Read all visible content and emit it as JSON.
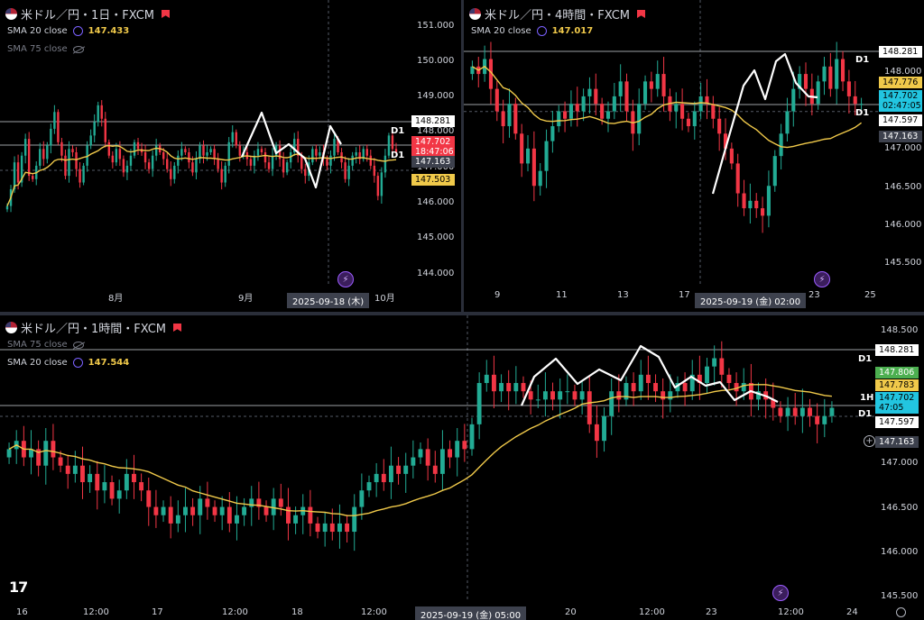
{
  "colors": {
    "up": "#22ab94",
    "down": "#f23645",
    "sma": "#f0c94a",
    "line": "#ffffff",
    "bg": "#000000",
    "crosshair": "#555a66"
  },
  "panes": [
    {
      "id": "p1",
      "title": "米ドル／円・1日・FXCM",
      "indicators": [
        {
          "name": "SMA 20 close",
          "value": "147.433",
          "icon": "settings-icon",
          "dim": false
        },
        {
          "name": "SMA 75 close",
          "value": "",
          "icon": "eye-off-icon",
          "dim": true
        }
      ],
      "yticks": [
        "151.000",
        "150.000",
        "149.000",
        "148.000",
        "147.000",
        "146.000",
        "145.000",
        "144.000"
      ],
      "price_labels": [
        {
          "text": "148.281",
          "bg": "#ffffff",
          "fg": "#000000"
        },
        {
          "text": "147.702",
          "bg": "#f23645",
          "fg": "#ffffff"
        },
        {
          "text": "18:47:06",
          "bg": "#f23645",
          "fg": "#ffffff"
        },
        {
          "text": "147.163",
          "bg": "#3d414d",
          "fg": "#ffffff"
        },
        {
          "text": "147.503",
          "bg": "#f0c94a",
          "fg": "#000000"
        }
      ],
      "d1_labels": [
        "D1",
        "D1"
      ],
      "xlabels": [
        "8月",
        "9月",
        "10月"
      ],
      "crosshair_label": "2025-09-18 (木)"
    },
    {
      "id": "p2",
      "title": "米ドル／円・4時間・FXCM",
      "indicators": [
        {
          "name": "SMA 20 close",
          "value": "147.017",
          "icon": "settings-icon",
          "dim": false
        }
      ],
      "yticks": [
        "148.500",
        "148.000",
        "147.000",
        "146.500",
        "146.000",
        "145.500"
      ],
      "price_labels": [
        {
          "text": "148.281",
          "bg": "#ffffff",
          "fg": "#000000"
        },
        {
          "text": "147.776",
          "bg": "#f0c94a",
          "fg": "#000000"
        },
        {
          "text": "147.702",
          "bg": "#22c5e0",
          "fg": "#000000"
        },
        {
          "text": "02:47:05",
          "bg": "#22c5e0",
          "fg": "#000000"
        },
        {
          "text": "147.597",
          "bg": "#ffffff",
          "fg": "#000000"
        },
        {
          "text": "147.163",
          "bg": "#3d414d",
          "fg": "#ffffff"
        }
      ],
      "d1_labels": [
        "D1",
        "D1"
      ],
      "xlabels": [
        "9",
        "11",
        "13",
        "17",
        "23",
        "25"
      ],
      "crosshair_label": "2025-09-19 (金)  02:00"
    },
    {
      "id": "p3",
      "title": "米ドル／円・1時間・FXCM",
      "indicators": [
        {
          "name": "SMA 75 close",
          "value": "",
          "icon": "eye-off-icon",
          "dim": true
        },
        {
          "name": "SMA 20 close",
          "value": "147.544",
          "icon": "settings-icon",
          "dim": false
        }
      ],
      "yticks": [
        "148.500",
        "148.000",
        "147.000",
        "146.500",
        "146.000",
        "145.500"
      ],
      "price_labels": [
        {
          "text": "148.281",
          "bg": "#ffffff",
          "fg": "#000000"
        },
        {
          "text": "147.806",
          "bg": "#4caf50",
          "fg": "#ffffff"
        },
        {
          "text": "147.783",
          "bg": "#f0c94a",
          "fg": "#000000"
        },
        {
          "text": "147.702",
          "bg": "#22c5e0",
          "fg": "#000000"
        },
        {
          "text": "47:05",
          "bg": "#22c5e0",
          "fg": "#000000"
        },
        {
          "text": "147.597",
          "bg": "#ffffff",
          "fg": "#000000"
        },
        {
          "text": "147.163",
          "bg": "#3d414d",
          "fg": "#ffffff"
        }
      ],
      "d1_labels": [
        "D1",
        "1H",
        "D1"
      ],
      "xlabels": [
        "16",
        "12:00",
        "17",
        "12:00",
        "18",
        "12:00",
        "20",
        "12:00",
        "23",
        "12:00",
        "24"
      ],
      "crosshair_label": "2025-09-19 (金)  05:00"
    }
  ],
  "chart_data": [
    {
      "type": "candlestick",
      "title": "米ドル／円・1日・FXCM",
      "ylim": [
        143.7,
        151.7
      ],
      "xlabels": [
        "8月",
        "9月",
        "10月"
      ],
      "sma20_last": 147.433,
      "levels": {
        "d1_high": 148.281,
        "d1_low": 147.163,
        "last": 147.702
      },
      "closes": [
        146.1,
        146.6,
        147.4,
        146.8,
        147.6,
        148.1,
        147.0,
        146.9,
        147.3,
        147.8,
        147.5,
        147.9,
        148.4,
        148.9,
        148.0,
        147.6,
        147.0,
        147.8,
        147.7,
        147.2,
        146.8,
        147.3,
        147.9,
        148.2,
        148.6,
        149.1,
        148.7,
        148.0,
        147.6,
        147.4,
        147.8,
        147.5,
        147.1,
        147.3,
        147.6,
        148.0,
        147.8,
        147.7,
        147.4,
        147.2,
        147.6,
        147.9,
        147.7,
        147.5,
        147.2,
        146.9,
        147.3,
        147.6,
        147.8,
        147.7,
        147.4,
        147.1,
        147.5,
        147.9,
        147.6,
        147.7,
        147.8,
        147.5,
        147.2,
        146.8,
        147.3,
        148.0,
        148.3,
        147.9,
        147.6,
        147.7,
        147.5,
        147.3,
        147.6,
        147.8,
        147.7,
        147.4,
        147.2,
        147.6,
        147.9,
        147.5,
        147.1,
        147.4,
        147.7,
        148.1,
        147.6,
        147.2,
        147.0,
        147.4,
        147.8,
        147.6,
        147.7,
        147.5,
        147.3,
        147.6,
        148.1,
        147.7,
        147.4,
        146.9,
        147.3,
        147.6,
        147.7,
        147.5,
        147.8,
        147.6,
        147.3,
        147.0,
        146.4,
        147.1,
        147.6,
        148.2,
        147.8,
        147.7
      ]
    },
    {
      "type": "candlestick",
      "title": "米ドル／円・4時間・FXCM",
      "ylim": [
        145.25,
        148.85
      ],
      "xlabels": [
        "9",
        "11",
        "13",
        "17",
        "23",
        "25"
      ],
      "sma20_last": 147.017,
      "levels": {
        "d1_high": 148.281,
        "d1_low": 147.597,
        "last": 147.702
      },
      "closes": [
        148.2,
        148.1,
        148.3,
        147.9,
        147.6,
        147.4,
        147.7,
        147.3,
        146.9,
        147.1,
        146.6,
        146.8,
        147.2,
        147.4,
        147.6,
        147.5,
        147.7,
        147.6,
        147.8,
        147.9,
        147.7,
        147.5,
        147.6,
        147.8,
        148.0,
        147.6,
        147.3,
        147.7,
        148.0,
        147.9,
        148.1,
        147.8,
        147.6,
        147.7,
        147.5,
        147.4,
        147.6,
        147.8,
        147.7,
        147.5,
        147.3,
        147.1,
        146.9,
        146.5,
        146.3,
        146.4,
        146.3,
        146.2,
        146.6,
        147.0,
        147.3,
        147.6,
        147.9,
        148.1,
        147.9,
        147.7,
        148.0,
        148.2,
        147.9,
        148.3,
        148.0,
        147.8,
        147.7,
        147.7
      ]
    },
    {
      "type": "candlestick",
      "title": "米ドル／円・1時間・FXCM",
      "ylim": [
        145.35,
        148.6
      ],
      "xlabels": [
        "16",
        "12:00",
        "17",
        "12:00",
        "18",
        "12:00",
        "20",
        "12:00",
        "23",
        "12:00",
        "24"
      ],
      "sma20_last": 147.544,
      "levels": {
        "d1_high": 148.281,
        "d1_low": 147.597,
        "last": 147.702
      },
      "closes": [
        147.2,
        147.3,
        147.1,
        147.2,
        147.0,
        147.3,
        147.1,
        147.0,
        146.9,
        147.0,
        146.8,
        146.9,
        146.7,
        146.8,
        146.6,
        146.7,
        146.9,
        146.8,
        146.7,
        146.5,
        146.4,
        146.5,
        146.3,
        146.4,
        146.5,
        146.4,
        146.6,
        146.5,
        146.4,
        146.5,
        146.3,
        146.4,
        146.5,
        146.6,
        146.5,
        146.4,
        146.6,
        146.5,
        146.3,
        146.4,
        146.5,
        146.3,
        146.2,
        146.3,
        146.2,
        146.3,
        146.2,
        146.5,
        146.7,
        146.8,
        146.9,
        146.8,
        147.0,
        146.9,
        147.0,
        147.1,
        147.2,
        147.0,
        146.9,
        147.2,
        147.1,
        147.3,
        147.2,
        147.5,
        148.0,
        148.1,
        147.9,
        148.0,
        147.9,
        148.0,
        147.9,
        147.8,
        147.8,
        147.9,
        147.8,
        147.9,
        147.9,
        147.8,
        147.9,
        147.5,
        147.3,
        147.6,
        147.9,
        147.8,
        148.0,
        147.9,
        148.1,
        148.0,
        147.9,
        147.8,
        147.9,
        148.0,
        147.9,
        148.1,
        148.0,
        148.2,
        148.3,
        148.1,
        148.0,
        147.9,
        148.0,
        147.8,
        147.9,
        147.8,
        147.7,
        147.6,
        147.7,
        147.6,
        147.7,
        147.6,
        147.5,
        147.6,
        147.7
      ]
    }
  ]
}
